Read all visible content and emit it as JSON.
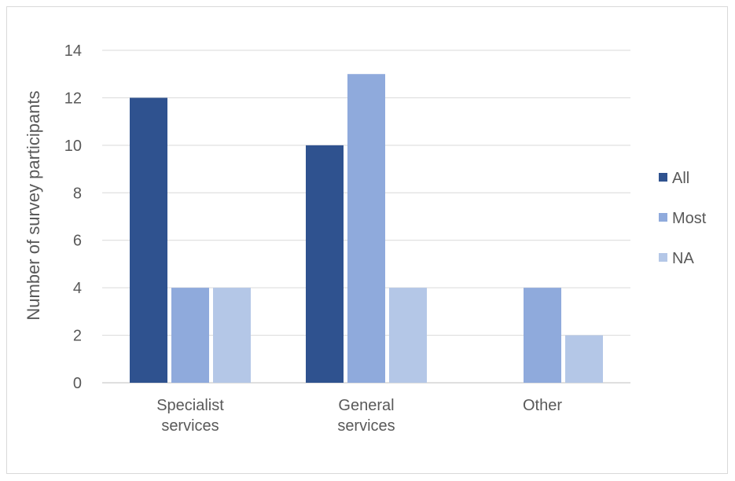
{
  "chart_data": {
    "type": "bar",
    "title": "",
    "xlabel": "",
    "ylabel": "Number of survey participants",
    "ylim": [
      0,
      14
    ],
    "yticks": [
      0,
      2,
      4,
      6,
      8,
      10,
      12,
      14
    ],
    "grid": true,
    "legend_position": "right",
    "categories": [
      [
        "Specialist",
        "services"
      ],
      [
        "General",
        "services"
      ],
      [
        "Other"
      ]
    ],
    "series": [
      {
        "name": "All",
        "color": "#2f528f",
        "values": [
          12,
          10,
          0
        ]
      },
      {
        "name": "Most",
        "color": "#8faadc",
        "values": [
          4,
          13,
          4
        ]
      },
      {
        "name": "NA",
        "color": "#b4c7e7",
        "values": [
          4,
          4,
          2
        ]
      }
    ]
  }
}
